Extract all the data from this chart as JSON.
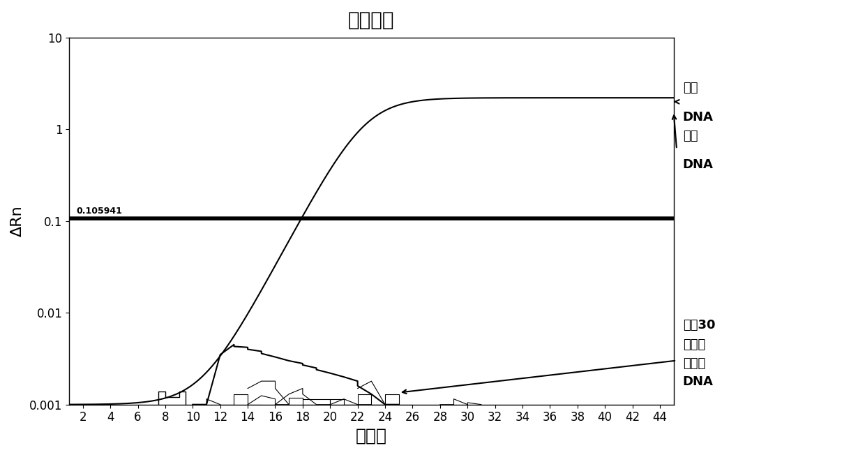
{
  "title": "扩增图谱",
  "xlabel": "循环数",
  "ylabel": "ΔRn",
  "xlim": [
    1,
    45
  ],
  "ylim_log": [
    0.001,
    10
  ],
  "xticks": [
    2,
    4,
    6,
    8,
    10,
    12,
    14,
    16,
    18,
    20,
    22,
    24,
    26,
    28,
    30,
    32,
    34,
    36,
    38,
    40,
    42,
    44
  ],
  "yticks_log": [
    0.001,
    0.01,
    0.1,
    1,
    10
  ],
  "threshold_value": 0.105941,
  "threshold_label": "0.105941",
  "ann_beef1": "牛肉",
  "ann_beef2": "DNA",
  "ann_cattle1": "家牛",
  "ann_cattle2": "DNA",
  "ann_other1": "其它30",
  "ann_other2": "种动植",
  "ann_other3": "物物种",
  "ann_other4": "DNA",
  "bg_color": "#ffffff",
  "line_color": "#000000",
  "title_fontsize": 20,
  "axis_label_fontsize": 16,
  "tick_fontsize": 12,
  "ann_fontsize": 13
}
